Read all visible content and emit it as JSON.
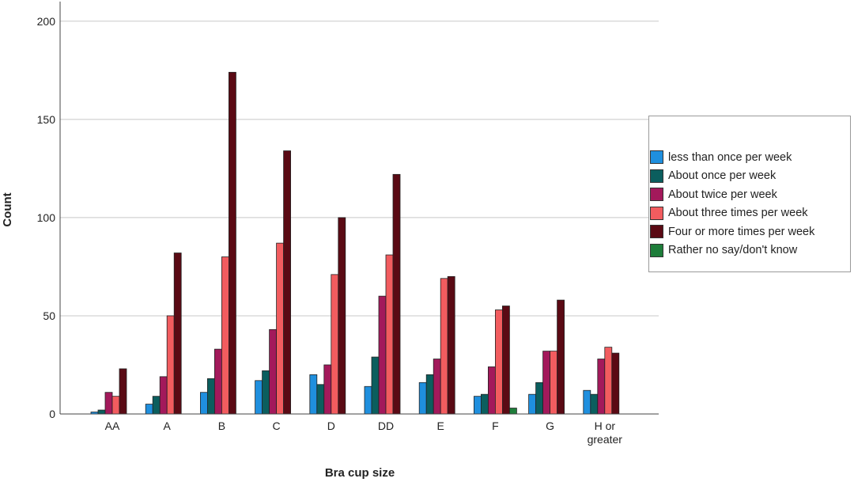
{
  "chart_data": {
    "type": "bar",
    "xlabel": "Bra cup size",
    "ylabel": "Count",
    "ylim": [
      0,
      210
    ],
    "yticks": [
      0,
      50,
      100,
      150,
      200
    ],
    "grid": "horizontal",
    "legend_position": "right",
    "categories": [
      "AA",
      "A",
      "B",
      "C",
      "D",
      "DD",
      "E",
      "F",
      "G",
      "H or greater"
    ],
    "series": [
      {
        "name": "less than once per week",
        "color": "#1f8fde",
        "values": [
          1,
          5,
          11,
          17,
          20,
          14,
          16,
          9,
          10,
          12
        ]
      },
      {
        "name": "About once per week",
        "color": "#0b5e5e",
        "values": [
          2,
          9,
          18,
          22,
          15,
          29,
          20,
          10,
          16,
          10
        ]
      },
      {
        "name": "About twice per week",
        "color": "#a3195b",
        "values": [
          11,
          19,
          33,
          43,
          25,
          60,
          28,
          24,
          32,
          28
        ]
      },
      {
        "name": "About three times per week",
        "color": "#f25c5f",
        "values": [
          9,
          50,
          80,
          87,
          71,
          81,
          69,
          53,
          32,
          34
        ]
      },
      {
        "name": "Four or more times per week",
        "color": "#5a0a14",
        "values": [
          23,
          82,
          174,
          134,
          100,
          122,
          70,
          55,
          58,
          31
        ]
      },
      {
        "name": "Rather no say/don't know",
        "color": "#1e7d3a",
        "values": [
          0,
          0,
          0,
          0,
          0,
          0,
          0,
          3,
          0,
          0
        ]
      }
    ]
  }
}
